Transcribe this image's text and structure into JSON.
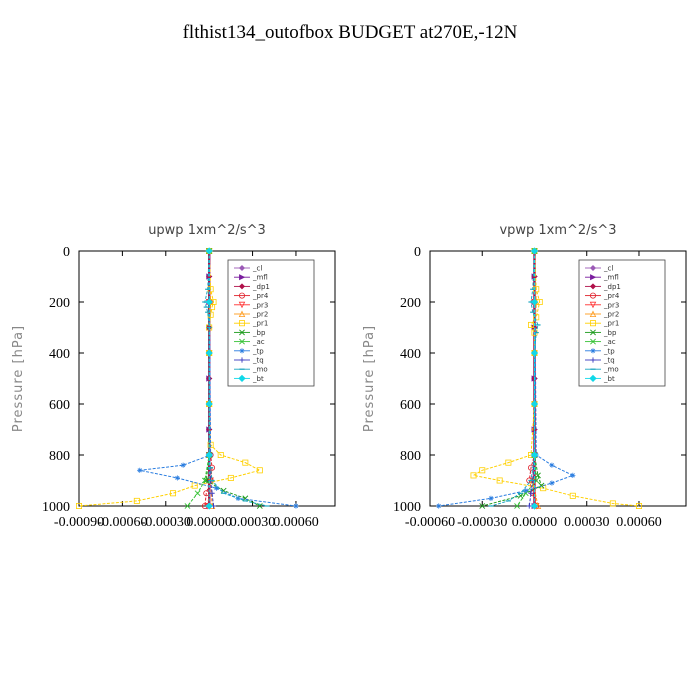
{
  "title": "flthist134_outofbox  BUDGET at270E,-12N",
  "chart_data": [
    {
      "type": "line",
      "title": "upwp   1xm^2/s^3",
      "xlabel": "",
      "ylabel": "Pressure  [hPa]",
      "xlim": [
        -0.0009,
        0.00087
      ],
      "ylim": [
        1000,
        0
      ],
      "xticks": [
        -0.0009,
        -0.0006,
        -0.0003,
        0.0,
        0.0003,
        0.0006
      ],
      "xtick_labels": [
        "-0.00090",
        "-0.00060",
        "-0.00030",
        "0.00000",
        "0.00030",
        "0.00060"
      ],
      "yticks": [
        0,
        200,
        400,
        600,
        800,
        1000
      ],
      "legend": "top-right",
      "grid": false,
      "series": [
        {
          "name": "_cl",
          "color": "#9b59b6",
          "marker": "diamond",
          "pressure": [
            0,
            100,
            200,
            300,
            400,
            500,
            600,
            700,
            800,
            900,
            1000
          ],
          "values": [
            0,
            0,
            0,
            0,
            0,
            0,
            0,
            0,
            0,
            0,
            0
          ]
        },
        {
          "name": "_mfl",
          "color": "#7a1d9e",
          "marker": "tri-right",
          "pressure": [
            0,
            100,
            200,
            300,
            400,
            500,
            600,
            700,
            800,
            900,
            1000
          ],
          "values": [
            0,
            0,
            0,
            0,
            0,
            0,
            0,
            0,
            0,
            0,
            0
          ]
        },
        {
          "name": "_dp1",
          "color": "#b0104a",
          "marker": "diamond",
          "pressure": [
            0,
            100,
            200,
            300,
            400,
            500,
            600,
            700,
            800,
            900,
            1000
          ],
          "values": [
            0,
            0,
            0,
            0,
            0,
            0,
            0,
            0,
            0,
            0,
            0
          ]
        },
        {
          "name": "_pr4",
          "color": "#e0202a",
          "marker": "circle",
          "pressure": [
            0,
            200,
            400,
            600,
            800,
            850,
            900,
            950,
            1000
          ],
          "values": [
            0,
            5e-06,
            0,
            0,
            1e-05,
            2e-05,
            1e-05,
            -2e-05,
            -3e-05
          ]
        },
        {
          "name": "_pr3",
          "color": "#ff3030",
          "marker": "tri-down",
          "pressure": [
            0,
            200,
            400,
            600,
            800,
            900,
            1000
          ],
          "values": [
            0,
            0,
            0,
            0,
            0,
            1e-05,
            -1e-05
          ]
        },
        {
          "name": "_pr2",
          "color": "#ff9a1a",
          "marker": "tri-up",
          "pressure": [
            0,
            200,
            400,
            600,
            800,
            900,
            1000
          ],
          "values": [
            0,
            1e-05,
            0,
            0,
            0,
            1e-05,
            2e-05
          ]
        },
        {
          "name": "_pr1",
          "color": "#ffd000",
          "marker": "square",
          "pressure": [
            0,
            150,
            200,
            220,
            250,
            300,
            400,
            600,
            760,
            800,
            830,
            860,
            890,
            920,
            950,
            980,
            1000
          ],
          "values": [
            0,
            1e-05,
            3e-05,
            2e-05,
            1e-05,
            0,
            0,
            0,
            1e-05,
            8e-05,
            0.00025,
            0.00035,
            0.00015,
            -0.0001,
            -0.00025,
            -0.0005,
            -0.0009
          ]
        },
        {
          "name": "_bp",
          "color": "#1a9a1a",
          "marker": "x",
          "pressure": [
            0,
            800,
            900,
            940,
            970,
            1000
          ],
          "values": [
            0,
            0,
            -2e-05,
            0.0001,
            0.00025,
            0.00035
          ]
        },
        {
          "name": "_ac",
          "color": "#36c236",
          "marker": "x",
          "pressure": [
            0,
            800,
            900,
            950,
            1000
          ],
          "values": [
            0,
            0,
            -3e-05,
            -8e-05,
            -0.00015
          ]
        },
        {
          "name": "_tp",
          "color": "#2a7de0",
          "marker": "star",
          "pressure": [
            0,
            800,
            840,
            860,
            890,
            930,
            970,
            1000
          ],
          "values": [
            0,
            1e-05,
            -0.00018,
            -0.00048,
            -0.00022,
            5e-05,
            0.0002,
            0.0006
          ]
        },
        {
          "name": "_tq",
          "color": "#3a3ac0",
          "marker": "plus",
          "pressure": [
            0,
            800,
            900,
            950,
            1000
          ],
          "values": [
            0,
            0,
            1e-05,
            2e-05,
            3e-05
          ]
        },
        {
          "name": "_mo",
          "color": "#1aa6c0",
          "marker": "dash",
          "pressure": [
            0,
            150,
            200,
            220,
            240,
            300,
            400,
            600,
            800,
            850,
            900,
            950,
            980,
            1000
          ],
          "values": [
            0,
            -1e-05,
            -3e-05,
            -2e-05,
            -1e-05,
            0,
            0,
            0,
            0,
            1e-05,
            2e-05,
            0.0001,
            0.00025,
            0.0004
          ]
        },
        {
          "name": "_bt",
          "color": "#10d8e8",
          "marker": "diamond-filled",
          "pressure": [
            0,
            200,
            400,
            600,
            800,
            1000
          ],
          "values": [
            0,
            0,
            0,
            0,
            0,
            0
          ]
        }
      ]
    },
    {
      "type": "line",
      "title": "vpwp   1xm^2/s^3",
      "xlabel": "",
      "ylabel": "Pressure  [hPa]",
      "xlim": [
        -0.0006,
        0.00087
      ],
      "ylim": [
        1000,
        0
      ],
      "xticks": [
        -0.0006,
        -0.0003,
        0.0,
        0.0003,
        0.0006
      ],
      "xtick_labels": [
        "-0.00060",
        "-0.00030",
        "0.00000",
        "0.00030",
        "0.00060"
      ],
      "yticks": [
        0,
        200,
        400,
        600,
        800,
        1000
      ],
      "legend": "top-right",
      "grid": false,
      "series": [
        {
          "name": "_cl",
          "color": "#9b59b6",
          "marker": "diamond",
          "pressure": [
            0,
            100,
            200,
            300,
            400,
            500,
            600,
            700,
            800,
            900,
            1000
          ],
          "values": [
            0,
            0,
            0,
            0,
            0,
            0,
            0,
            0,
            0,
            0,
            0
          ]
        },
        {
          "name": "_mfl",
          "color": "#7a1d9e",
          "marker": "tri-right",
          "pressure": [
            0,
            100,
            200,
            300,
            400,
            500,
            600,
            700,
            800,
            900,
            1000
          ],
          "values": [
            0,
            0,
            0,
            0,
            0,
            0,
            0,
            0,
            0,
            0,
            0
          ]
        },
        {
          "name": "_dp1",
          "color": "#b0104a",
          "marker": "diamond",
          "pressure": [
            0,
            100,
            200,
            300,
            400,
            500,
            600,
            700,
            800,
            900,
            1000
          ],
          "values": [
            0,
            0,
            0,
            0,
            0,
            0,
            0,
            0,
            0,
            0,
            0
          ]
        },
        {
          "name": "_pr4",
          "color": "#e0202a",
          "marker": "circle",
          "pressure": [
            0,
            200,
            400,
            600,
            800,
            850,
            900,
            950,
            1000
          ],
          "values": [
            0,
            0,
            0,
            0,
            0,
            -2e-05,
            -3e-05,
            -1e-05,
            1e-05
          ]
        },
        {
          "name": "_pr3",
          "color": "#ff3030",
          "marker": "tri-down",
          "pressure": [
            0,
            200,
            400,
            600,
            800,
            900,
            1000
          ],
          "values": [
            0,
            0,
            0,
            0,
            0,
            -1e-05,
            1e-05
          ]
        },
        {
          "name": "_pr2",
          "color": "#ff9a1a",
          "marker": "tri-up",
          "pressure": [
            0,
            200,
            400,
            600,
            800,
            900,
            1000
          ],
          "values": [
            0,
            1e-05,
            0,
            0,
            0,
            -1e-05,
            2e-05
          ]
        },
        {
          "name": "_pr1",
          "color": "#ffd000",
          "marker": "square",
          "pressure": [
            0,
            150,
            200,
            260,
            290,
            320,
            400,
            600,
            800,
            830,
            860,
            880,
            900,
            930,
            960,
            990,
            1000
          ],
          "values": [
            0,
            1e-05,
            3e-05,
            1e-05,
            -2e-05,
            0,
            0,
            0,
            -2e-05,
            -0.00015,
            -0.0003,
            -0.00035,
            -0.0002,
            5e-05,
            0.00022,
            0.00045,
            0.0006
          ]
        },
        {
          "name": "_bp",
          "color": "#1a9a1a",
          "marker": "x",
          "pressure": [
            0,
            800,
            880,
            920,
            960,
            1000
          ],
          "values": [
            0,
            0,
            2e-05,
            4e-05,
            -8e-05,
            -0.0003
          ]
        },
        {
          "name": "_ac",
          "color": "#36c236",
          "marker": "x",
          "pressure": [
            0,
            800,
            900,
            950,
            1000
          ],
          "values": [
            0,
            0,
            1e-05,
            -5e-05,
            -0.0001
          ]
        },
        {
          "name": "_tp",
          "color": "#2a7de0",
          "marker": "star",
          "pressure": [
            0,
            800,
            840,
            880,
            910,
            940,
            970,
            1000
          ],
          "values": [
            0,
            1e-05,
            0.0001,
            0.00022,
            0.0001,
            -5e-05,
            -0.00025,
            -0.00055
          ]
        },
        {
          "name": "_tq",
          "color": "#3a3ac0",
          "marker": "plus",
          "pressure": [
            0,
            800,
            900,
            950,
            1000
          ],
          "values": [
            0,
            0,
            -1e-05,
            -2e-05,
            -3e-05
          ]
        },
        {
          "name": "_mo",
          "color": "#1aa6c0",
          "marker": "dash",
          "pressure": [
            0,
            150,
            200,
            240,
            290,
            320,
            400,
            600,
            800,
            900,
            950,
            980,
            1000
          ],
          "values": [
            0,
            -1e-05,
            -2e-05,
            -1e-05,
            2e-05,
            1e-05,
            0,
            0,
            0,
            -2e-05,
            -8e-05,
            -0.00015,
            -0.00025
          ]
        },
        {
          "name": "_bt",
          "color": "#10d8e8",
          "marker": "diamond-filled",
          "pressure": [
            0,
            200,
            400,
            600,
            800,
            1000
          ],
          "values": [
            0,
            0,
            0,
            0,
            0,
            0
          ]
        }
      ]
    }
  ]
}
